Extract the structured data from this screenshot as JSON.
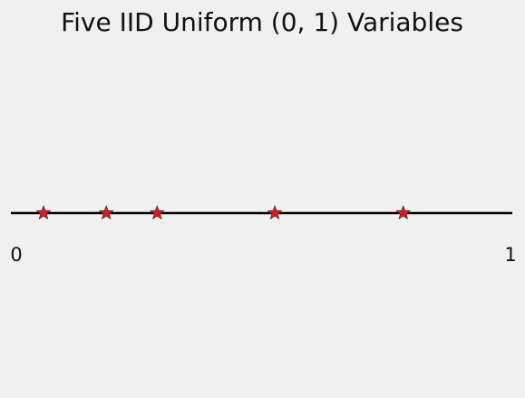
{
  "chart_data": {
    "type": "scatter",
    "title": "Five IID Uniform (0, 1) Variables",
    "xlabel": "",
    "ylabel": "",
    "xlim": [
      0,
      1
    ],
    "x_ticks": [
      {
        "value": 0,
        "label": "0"
      },
      {
        "value": 1,
        "label": "1"
      }
    ],
    "x": [
      0.055,
      0.182,
      0.285,
      0.523,
      0.783
    ],
    "marker": "star",
    "grid": false,
    "legend": false,
    "colors": {
      "background": "#f0f0f0",
      "line": "#000000",
      "marker_fill": "#e8141c",
      "marker_edge": "#222222",
      "text": "#111111"
    }
  }
}
